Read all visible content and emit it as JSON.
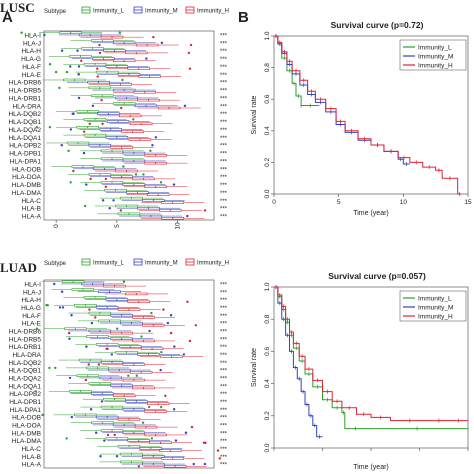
{
  "figure": {
    "panel_top_label": "LUSC",
    "panel_bottom_label": "LUAD",
    "panel_letters": [
      "A",
      "B"
    ]
  },
  "colors": {
    "immunity_l": "#2ca02c",
    "immunity_m": "#3344bb",
    "immunity_h": "#dd2233"
  },
  "chart_data": [
    {
      "type": "boxplot",
      "panel": "top-left",
      "legend_title": "Subtype",
      "legend": [
        "Immunity_L",
        "Immunity_M",
        "Immunity_H"
      ],
      "legend_placement": "top",
      "orientation": "horizontal",
      "categories": [
        "HLA-I",
        "HLA-J",
        "HLA-H",
        "HLA-G",
        "HLA-F",
        "HLA-E",
        "HLA-DRB6",
        "HLA-DRB5",
        "HLA-DRB1",
        "HLA-DRA",
        "HLA-DQB2",
        "HLA-DQB1",
        "HLA-DQA2",
        "HLA-DQA1",
        "HLA-DPB2",
        "HLA-DPB1",
        "HLA-DPA1",
        "HLA-DOB",
        "HLA-DOA",
        "HLA-DMB",
        "HLA-DMA",
        "HLA-C",
        "HLA-B",
        "HLA-A"
      ],
      "significance": [
        "***",
        "***",
        "***",
        "***",
        "***",
        "***",
        "***",
        "***",
        "***",
        "***",
        "***",
        "***",
        "***",
        "***",
        "***",
        "***",
        "***",
        "***",
        "***",
        "***",
        "***",
        "***",
        "***",
        "***"
      ],
      "xlim": [
        -1,
        13
      ],
      "xticks": [
        0,
        5,
        10
      ],
      "medians": {
        "Immunity_L": [
          1.2,
          3.8,
          3.0,
          2.0,
          3.2,
          4.2,
          1.5,
          3.6,
          3.8,
          5.6,
          2.6,
          3.2,
          2.6,
          3.2,
          1.8,
          4.6,
          4.6,
          2.2,
          3.6,
          4.6,
          4.9,
          6.2,
          5.8,
          6.0
        ],
        "Immunity_M": [
          2.8,
          5.6,
          4.8,
          3.9,
          5.0,
          6.0,
          3.5,
          5.6,
          5.8,
          7.4,
          4.3,
          5.1,
          4.5,
          5.0,
          3.6,
          6.4,
          6.4,
          4.0,
          5.4,
          6.4,
          6.7,
          8.0,
          7.6,
          7.8
        ],
        "Immunity_H": [
          4.6,
          7.5,
          6.6,
          5.6,
          6.8,
          7.7,
          5.3,
          7.3,
          7.6,
          9.3,
          6.1,
          7.0,
          6.3,
          6.9,
          5.4,
          8.2,
          8.2,
          5.8,
          7.2,
          8.2,
          8.4,
          9.6,
          9.4,
          9.6
        ]
      }
    },
    {
      "type": "line",
      "subtype": "kaplan-meier",
      "panel": "top-right",
      "title": "Survival curve (p=0.72)",
      "xlabel": "Time (year)",
      "ylabel": "Survival rate",
      "xlim": [
        0,
        15
      ],
      "ylim": [
        0,
        1
      ],
      "xticks": [
        0,
        5,
        10,
        15
      ],
      "yticks": [
        0.0,
        0.2,
        0.4,
        0.6,
        0.8,
        1.0
      ],
      "legend_placement": "top-right",
      "series": [
        {
          "name": "Immunity_L",
          "x": [
            0,
            0.3,
            0.6,
            1,
            1.4,
            1.7,
            2.1,
            2.1,
            3.5
          ],
          "y": [
            1,
            0.95,
            0.86,
            0.78,
            0.7,
            0.62,
            0.56,
            0.56,
            0.56
          ]
        },
        {
          "name": "Immunity_M",
          "x": [
            0,
            0.3,
            0.6,
            1,
            1.4,
            2,
            2.6,
            3.2,
            4,
            4.8,
            5.5,
            6.5,
            7.5,
            8.5,
            9.6,
            10,
            10.5
          ],
          "y": [
            1,
            0.95,
            0.89,
            0.82,
            0.76,
            0.69,
            0.63,
            0.58,
            0.52,
            0.44,
            0.39,
            0.34,
            0.31,
            0.27,
            0.22,
            0.19,
            0.19
          ]
        },
        {
          "name": "Immunity_H",
          "x": [
            0,
            0.3,
            0.6,
            1,
            1.4,
            2,
            2.6,
            3.2,
            4,
            4.8,
            5.5,
            6.5,
            7.5,
            8.5,
            9.6,
            10.5,
            11.5,
            12.5,
            13,
            14.2,
            14.5
          ],
          "y": [
            1,
            0.96,
            0.9,
            0.84,
            0.78,
            0.72,
            0.65,
            0.6,
            0.54,
            0.46,
            0.4,
            0.35,
            0.31,
            0.27,
            0.23,
            0.2,
            0.17,
            0.15,
            0.1,
            0.0,
            0.0
          ]
        }
      ]
    },
    {
      "type": "boxplot",
      "panel": "bottom-left",
      "legend_title": "Subtype",
      "legend": [
        "Immunity_L",
        "Immunity_M",
        "Immunity_H"
      ],
      "legend_placement": "top",
      "orientation": "horizontal",
      "categories": [
        "HLA-I",
        "HLA-J",
        "HLA-H",
        "HLA-G",
        "HLA-F",
        "HLA-E",
        "HLA-DRB6",
        "HLA-DRB5",
        "HLA-DRB1",
        "HLA-DRA",
        "HLA-DQB2",
        "HLA-DQB1",
        "HLA-DQA2",
        "HLA-DQA1",
        "HLA-DPB2",
        "HLA-DPB1",
        "HLA-DPA1",
        "HLA-DOB",
        "HLA-DOA",
        "HLA-DMB",
        "HLA-DMA",
        "HLA-C",
        "HLA-B",
        "HLA-A"
      ],
      "significance": [
        "***",
        "***",
        "***",
        "***",
        "***",
        "***",
        "***",
        "***",
        "***",
        "***",
        "***",
        "***",
        "***",
        "***",
        "***",
        "***",
        "***",
        "***",
        "***",
        "***",
        "***",
        "***",
        "***",
        "***"
      ],
      "xlim": [
        -1,
        13
      ],
      "medians": {
        "Immunity_L": [
          1.4,
          2.2,
          3.2,
          2.4,
          3.6,
          4.4,
          1.6,
          3.4,
          4.2,
          5.8,
          2.8,
          3.4,
          2.6,
          3.6,
          2.0,
          4.8,
          4.6,
          2.4,
          3.8,
          4.6,
          5.0,
          6.0,
          6.2,
          6.2
        ],
        "Immunity_M": [
          3.0,
          4.4,
          5.0,
          4.2,
          5.4,
          6.2,
          3.6,
          5.4,
          6.1,
          7.6,
          4.6,
          5.2,
          4.5,
          5.4,
          3.8,
          6.6,
          6.4,
          4.2,
          5.6,
          6.4,
          6.8,
          7.8,
          8.0,
          8.0
        ],
        "Immunity_H": [
          4.8,
          6.6,
          6.8,
          6.0,
          7.2,
          8.0,
          5.4,
          7.2,
          7.9,
          9.5,
          6.4,
          7.0,
          6.4,
          7.2,
          5.6,
          8.4,
          8.2,
          6.0,
          7.4,
          8.2,
          8.6,
          9.4,
          9.6,
          9.8
        ]
      }
    },
    {
      "type": "line",
      "subtype": "kaplan-meier",
      "panel": "bottom-right",
      "title": "Survival curve (p=0.057)",
      "xlabel": "Time (year)",
      "ylabel": "Survival rate",
      "xlim": [
        0,
        20
      ],
      "ylim": [
        0,
        1
      ],
      "yticks": [
        0.0,
        0.2,
        0.4,
        0.6,
        0.8,
        1.0
      ],
      "xticks": [
        0,
        5,
        10,
        15,
        20
      ],
      "legend_placement": "top-right",
      "series": [
        {
          "name": "Immunity_L",
          "x": [
            0,
            0.4,
            0.8,
            1.2,
            1.6,
            2,
            2.6,
            3.2,
            4,
            5,
            6,
            7,
            7.3,
            9.5,
            20
          ],
          "y": [
            1,
            0.94,
            0.86,
            0.78,
            0.7,
            0.62,
            0.54,
            0.46,
            0.38,
            0.3,
            0.25,
            0.22,
            0.12,
            0.12,
            0.12
          ]
        },
        {
          "name": "Immunity_M",
          "x": [
            0,
            0.4,
            0.8,
            1.2,
            1.6,
            2,
            2.4,
            2.8,
            3.2,
            3.6,
            4,
            4.4,
            5
          ],
          "y": [
            1,
            0.9,
            0.8,
            0.7,
            0.6,
            0.5,
            0.43,
            0.35,
            0.27,
            0.2,
            0.14,
            0.07,
            0.07
          ]
        },
        {
          "name": "Immunity_H",
          "x": [
            0,
            0.4,
            0.8,
            1.2,
            1.6,
            2,
            2.6,
            3.2,
            4,
            5,
            6,
            7,
            8.5,
            10,
            12,
            16,
            18,
            20
          ],
          "y": [
            1,
            0.95,
            0.88,
            0.8,
            0.72,
            0.65,
            0.57,
            0.49,
            0.42,
            0.35,
            0.29,
            0.25,
            0.21,
            0.19,
            0.17,
            0.17,
            0.17,
            0.17
          ]
        }
      ]
    }
  ]
}
